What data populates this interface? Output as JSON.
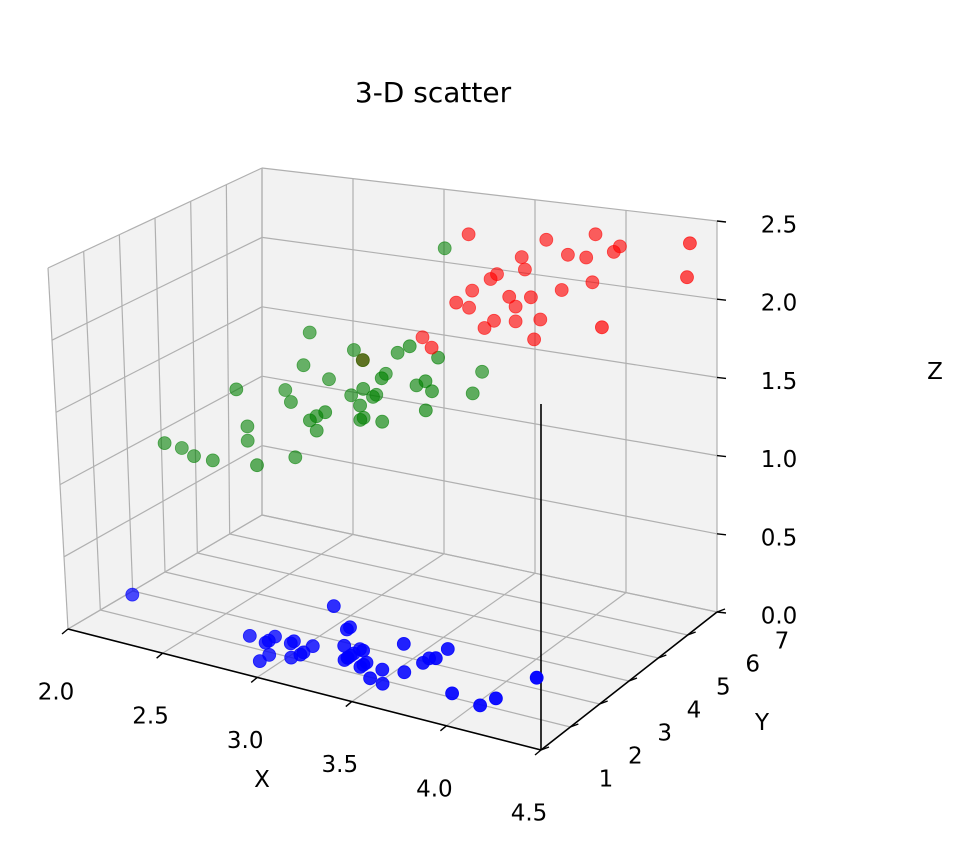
{
  "chart_data": {
    "type": "scatter",
    "projection": "3d",
    "title": "3-D scatter",
    "xlabel": "X",
    "ylabel": "Y",
    "zlabel": "Z",
    "xlim": [
      2.0,
      4.5
    ],
    "ylim": [
      1,
      7
    ],
    "zlim": [
      0.0,
      2.5
    ],
    "x_ticks": [
      "2.0",
      "2.5",
      "3.0",
      "3.5",
      "4.0",
      "4.5"
    ],
    "y_ticks": [
      "1",
      "2",
      "3",
      "4",
      "5",
      "6",
      "7"
    ],
    "z_ticks": [
      "0.0",
      "0.5",
      "1.0",
      "1.5",
      "2.0",
      "2.5"
    ],
    "grid": true,
    "colors": {
      "pane": "#f2f2f2",
      "grid": "#b0b0b0",
      "series_1": "#ff0000",
      "series_2": "#008000",
      "series_3": "#0000ff"
    },
    "series": [
      {
        "color": "#ff0000",
        "points": [
          [
            3.6,
            6.0,
            2.3
          ],
          [
            3.7,
            6.2,
            2.4
          ],
          [
            3.8,
            6.3,
            2.3
          ],
          [
            3.9,
            6.3,
            2.3
          ],
          [
            3.9,
            6.6,
            2.4
          ],
          [
            4.0,
            6.6,
            2.3
          ],
          [
            4.0,
            6.8,
            2.3
          ],
          [
            4.4,
            6.7,
            2.4
          ],
          [
            3.4,
            5.5,
            2.5
          ],
          [
            3.5,
            5.8,
            2.2
          ],
          [
            3.6,
            5.6,
            2.1
          ],
          [
            3.7,
            5.7,
            2.1
          ],
          [
            3.5,
            5.7,
            1.9
          ],
          [
            3.3,
            4.9,
            1.8
          ],
          [
            3.5,
            5.4,
            1.9
          ],
          [
            4.1,
            5.6,
            2.0
          ],
          [
            4.4,
            6.6,
            2.2
          ],
          [
            3.9,
            6.5,
            2.1
          ],
          [
            3.7,
            6.0,
            1.9
          ],
          [
            3.6,
            5.8,
            1.9
          ],
          [
            3.4,
            5.5,
            2.0
          ],
          [
            3.2,
            5.2,
            1.8
          ],
          [
            3.0,
            4.5,
            1.7
          ],
          [
            3.4,
            5.1,
            2.1
          ],
          [
            3.6,
            6.1,
            2.2
          ],
          [
            3.5,
            5.6,
            2.2
          ],
          [
            3.7,
            5.8,
            1.8
          ],
          [
            3.6,
            5.8,
            2.0
          ],
          [
            3.8,
            6.1,
            2.1
          ],
          [
            3.4,
            5.6,
            2.1
          ]
        ]
      },
      {
        "color": "#008000",
        "points": [
          [
            3.2,
            5.9,
            2.3
          ],
          [
            2.9,
            4.8,
            1.7
          ],
          [
            2.7,
            4.6,
            1.8
          ],
          [
            3.3,
            4.7,
            1.6
          ],
          [
            3.4,
            5.9,
            1.5
          ],
          [
            3.2,
            5.0,
            1.5
          ],
          [
            3.0,
            4.9,
            1.4
          ],
          [
            3.0,
            4.4,
            1.3
          ],
          [
            2.8,
            4.0,
            1.3
          ],
          [
            3.1,
            4.5,
            1.3
          ],
          [
            3.0,
            5.2,
            1.5
          ],
          [
            2.7,
            4.4,
            1.6
          ],
          [
            2.5,
            3.8,
            1.2
          ],
          [
            3.1,
            4.5,
            1.6
          ],
          [
            3.0,
            4.5,
            1.7
          ],
          [
            2.9,
            4.7,
            1.4
          ],
          [
            2.8,
            4.6,
            1.5
          ],
          [
            3.3,
            5.1,
            1.7
          ],
          [
            3.0,
            4.8,
            1.4
          ],
          [
            2.2,
            3.5,
            1.0
          ],
          [
            2.4,
            3.3,
            1.0
          ],
          [
            2.6,
            3.5,
            1.0
          ],
          [
            2.5,
            3.8,
            1.1
          ],
          [
            2.8,
            4.2,
            1.2
          ],
          [
            3.0,
            4.5,
            1.5
          ],
          [
            3.3,
            4.9,
            1.5
          ],
          [
            3.1,
            5.0,
            1.7
          ],
          [
            2.8,
            4.2,
            1.3
          ],
          [
            3.4,
            5.6,
            1.4
          ],
          [
            3.0,
            4.4,
            1.4
          ],
          [
            2.3,
            3.3,
            1.0
          ],
          [
            2.7,
            4.0,
            1.4
          ],
          [
            2.2,
            3.0,
            1.1
          ],
          [
            2.5,
            3.5,
            1.5
          ],
          [
            2.9,
            3.9,
            1.4
          ],
          [
            2.6,
            4.4,
            1.4
          ],
          [
            2.7,
            4.1,
            1.0
          ],
          [
            3.2,
            4.8,
            1.8
          ],
          [
            3.3,
            4.7,
            1.4
          ],
          [
            3.0,
            4.5,
            1.3
          ]
        ]
      },
      {
        "color": "#0000ff",
        "points": [
          [
            3.5,
            1.4,
            0.2
          ],
          [
            3.0,
            1.4,
            0.2
          ],
          [
            3.2,
            1.3,
            0.2
          ],
          [
            3.1,
            1.5,
            0.2
          ],
          [
            3.6,
            1.4,
            0.2
          ],
          [
            3.9,
            1.7,
            0.4
          ],
          [
            3.4,
            1.4,
            0.3
          ],
          [
            3.4,
            1.5,
            0.2
          ],
          [
            2.9,
            1.4,
            0.2
          ],
          [
            3.1,
            1.5,
            0.1
          ],
          [
            3.7,
            1.5,
            0.2
          ],
          [
            3.4,
            1.6,
            0.2
          ],
          [
            3.0,
            1.4,
            0.1
          ],
          [
            3.0,
            1.1,
            0.1
          ],
          [
            4.0,
            1.2,
            0.2
          ],
          [
            4.4,
            1.5,
            0.4
          ],
          [
            3.9,
            1.3,
            0.4
          ],
          [
            3.5,
            1.4,
            0.3
          ],
          [
            3.8,
            1.7,
            0.3
          ],
          [
            3.8,
            1.5,
            0.3
          ],
          [
            3.4,
            1.7,
            0.2
          ],
          [
            3.7,
            1.5,
            0.4
          ],
          [
            3.6,
            1.0,
            0.2
          ],
          [
            3.3,
            1.7,
            0.5
          ],
          [
            3.4,
            1.9,
            0.2
          ],
          [
            3.0,
            1.6,
            0.2
          ],
          [
            3.4,
            1.6,
            0.4
          ],
          [
            3.5,
            1.5,
            0.2
          ],
          [
            3.4,
            1.4,
            0.2
          ],
          [
            3.2,
            1.6,
            0.2
          ],
          [
            3.1,
            1.6,
            0.2
          ],
          [
            3.4,
            1.5,
            0.4
          ],
          [
            4.1,
            1.5,
            0.1
          ],
          [
            4.2,
            1.4,
            0.2
          ],
          [
            2.3,
            1.3,
            0.3
          ],
          [
            3.2,
            1.2,
            0.2
          ],
          [
            3.5,
            1.3,
            0.2
          ],
          [
            3.6,
            1.4,
            0.1
          ],
          [
            3.0,
            1.3,
            0.2
          ],
          [
            3.4,
            1.5,
            0.2
          ]
        ]
      }
    ]
  }
}
